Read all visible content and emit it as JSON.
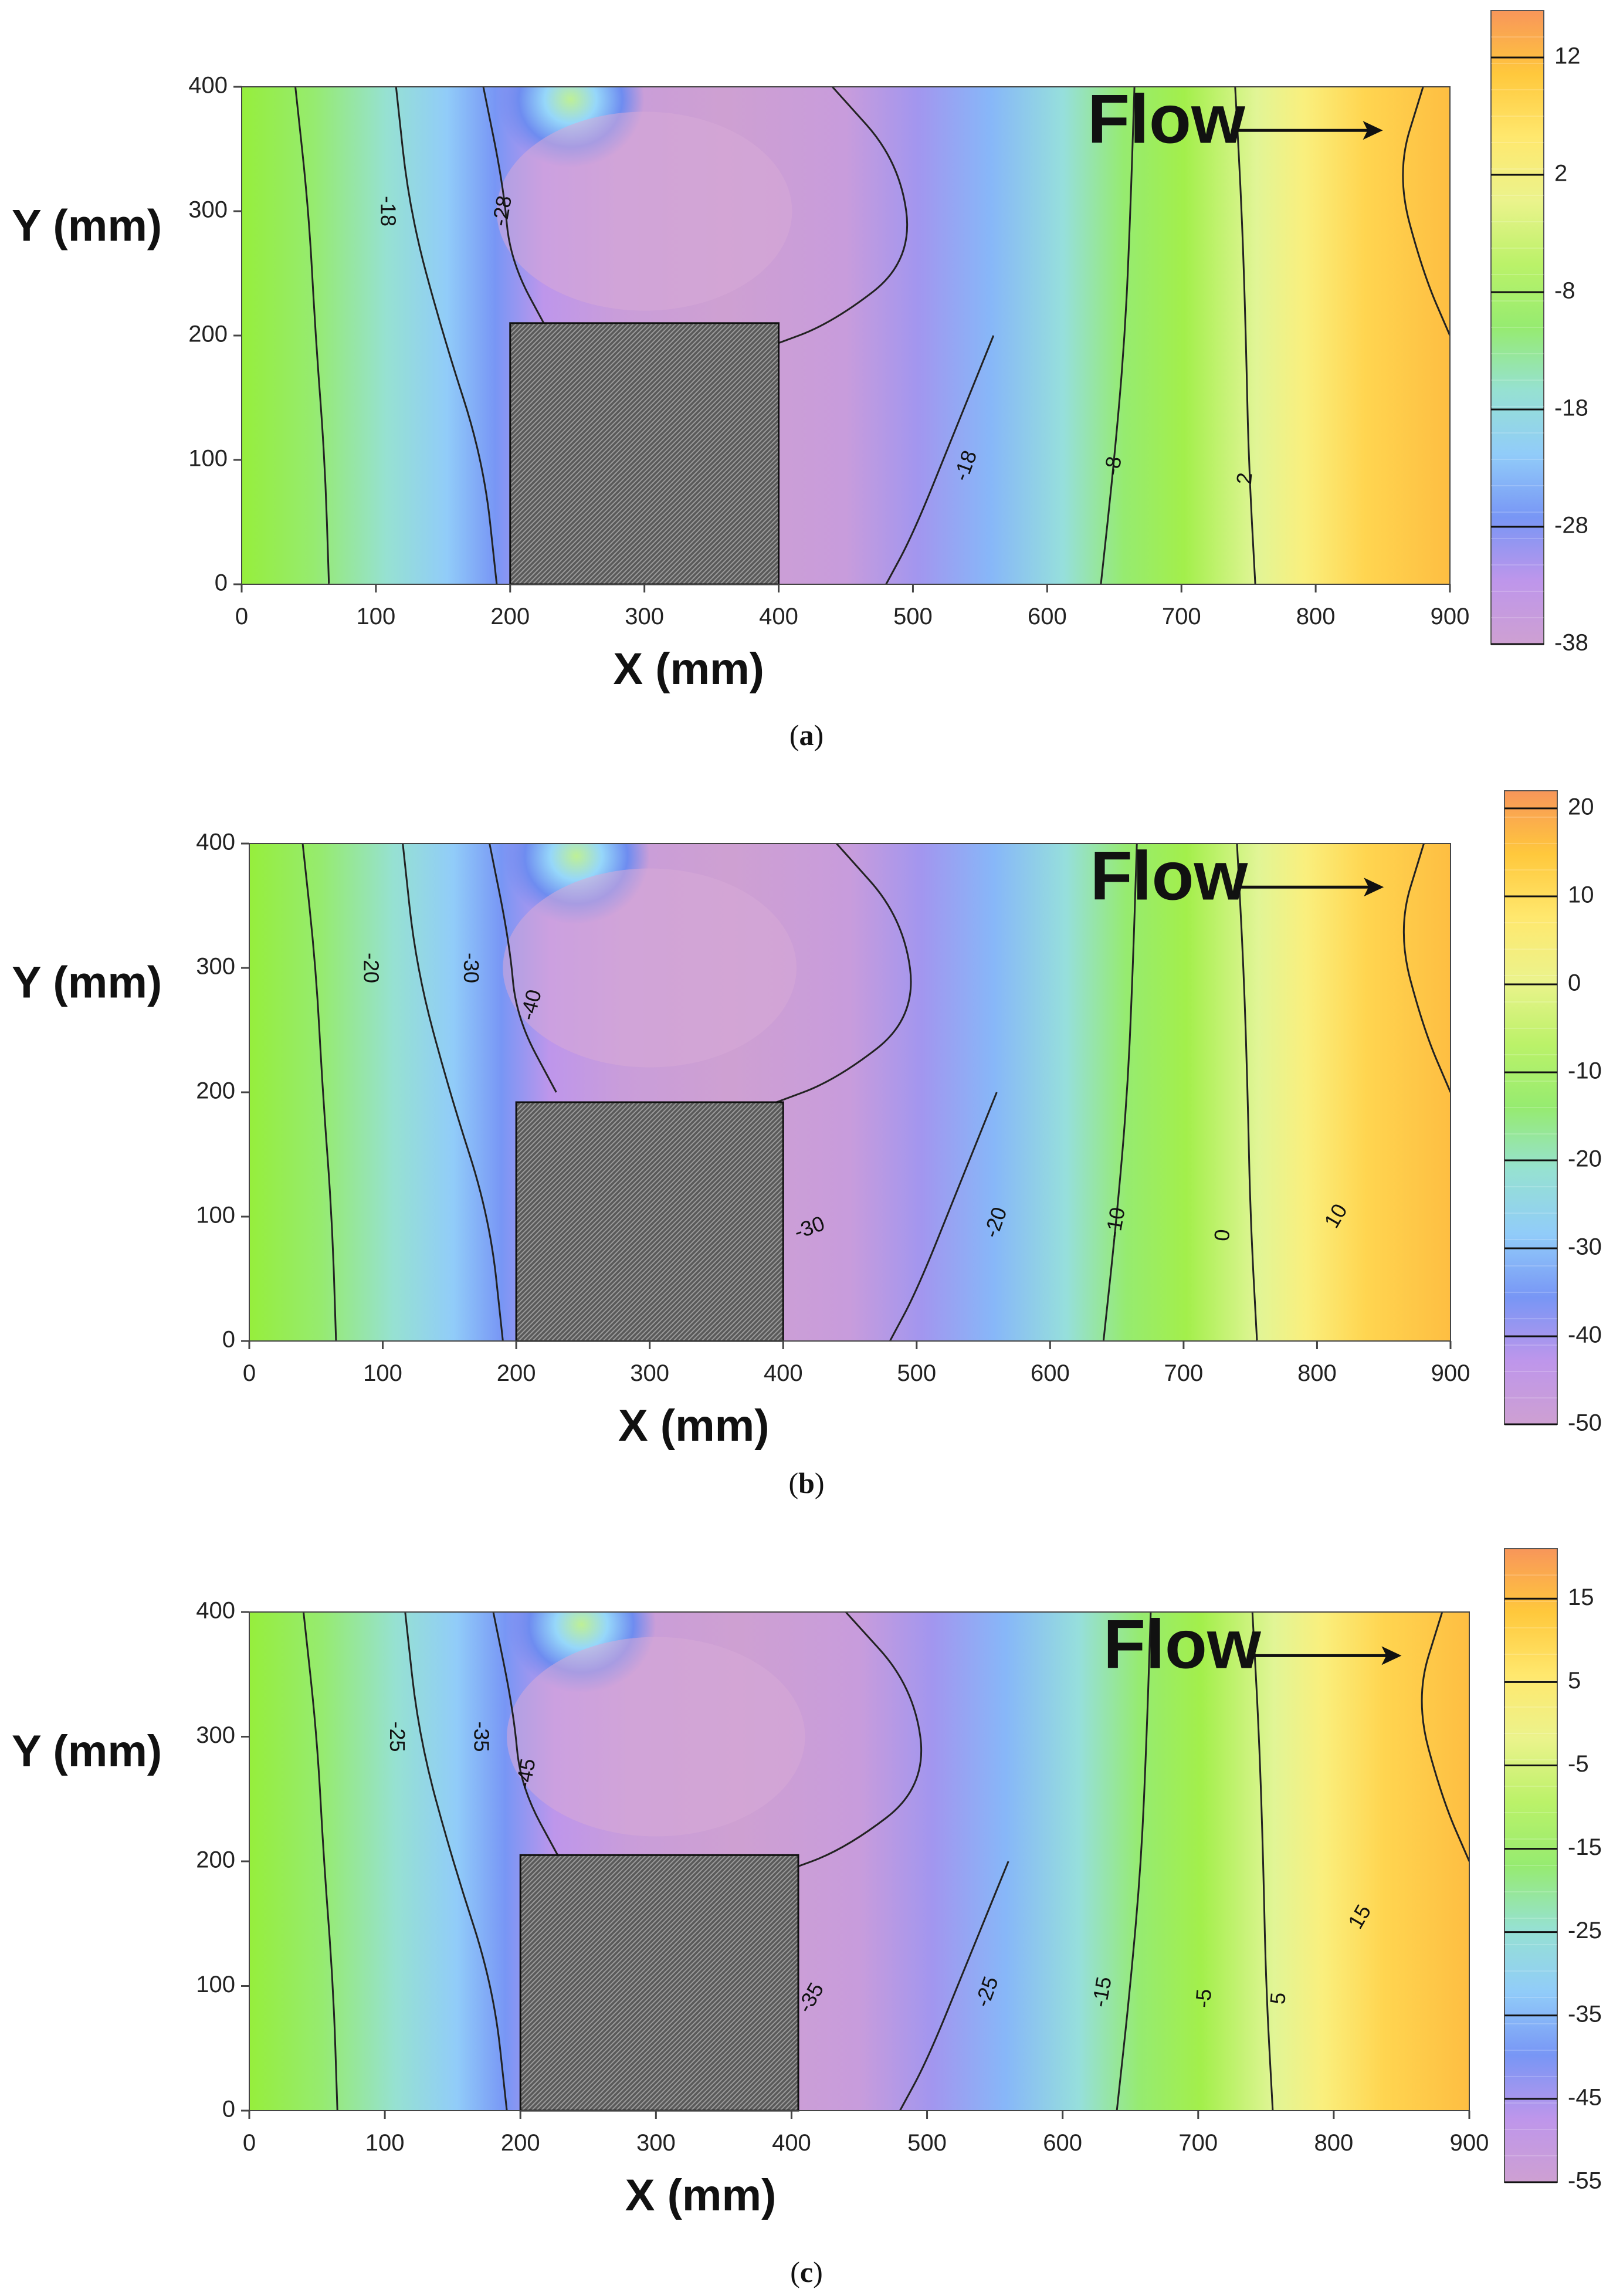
{
  "chart_data": [
    {
      "type": "contour",
      "caption_letter": "a",
      "xlabel": "X (mm)",
      "ylabel": "Y (mm)",
      "xlim": [
        0,
        900
      ],
      "ylim": [
        0,
        400
      ],
      "x_ticks": [
        "0",
        "100",
        "200",
        "300",
        "400",
        "500",
        "600",
        "700",
        "800",
        "900"
      ],
      "y_ticks": [
        "0",
        "100",
        "200",
        "300",
        "400"
      ],
      "annotation": "Flow",
      "obstacle": {
        "x": [
          200,
          400
        ],
        "y": [
          0,
          210
        ]
      },
      "colorbar": {
        "min": -38,
        "max": 16,
        "tick_values": [
          12,
          2,
          -8,
          -18,
          -28,
          -38
        ],
        "tick_labels": [
          "12",
          "2",
          "-8",
          "-18",
          "-28",
          "-38"
        ]
      },
      "contour_labels": [
        {
          "text": "-18",
          "x": 108,
          "y": 300,
          "rot": 90
        },
        {
          "text": "-28",
          "x": 195,
          "y": 300,
          "rot": -80
        },
        {
          "text": "-18",
          "x": 540,
          "y": 95,
          "rot": -70
        },
        {
          "text": "-8",
          "x": 650,
          "y": 95,
          "rot": -80
        },
        {
          "text": "2",
          "x": 748,
          "y": 85,
          "rot": -85
        }
      ]
    },
    {
      "type": "contour",
      "caption_letter": "b",
      "xlabel": "X (mm)",
      "ylabel": "Y (mm)",
      "xlim": [
        0,
        900
      ],
      "ylim": [
        0,
        400
      ],
      "x_ticks": [
        "0",
        "100",
        "200",
        "300",
        "400",
        "500",
        "600",
        "700",
        "800",
        "900"
      ],
      "y_ticks": [
        "0",
        "100",
        "200",
        "300",
        "400"
      ],
      "annotation": "Flow",
      "obstacle": {
        "x": [
          200,
          400
        ],
        "y": [
          0,
          192
        ]
      },
      "colorbar": {
        "min": -50,
        "max": 22,
        "tick_values": [
          20,
          10,
          0,
          -10,
          -20,
          -30,
          -40,
          -50
        ],
        "tick_labels": [
          "20",
          "10",
          "0",
          "-10",
          "-20",
          "-30",
          "-40",
          "-50"
        ]
      },
      "contour_labels": [
        {
          "text": "-20",
          "x": 90,
          "y": 300,
          "rot": 90
        },
        {
          "text": "-30",
          "x": 165,
          "y": 300,
          "rot": 90
        },
        {
          "text": "-40",
          "x": 212,
          "y": 270,
          "rot": -75
        },
        {
          "text": "-30",
          "x": 420,
          "y": 90,
          "rot": -20
        },
        {
          "text": "-20",
          "x": 560,
          "y": 95,
          "rot": -70
        },
        {
          "text": "-10",
          "x": 650,
          "y": 95,
          "rot": -80
        },
        {
          "text": "0",
          "x": 730,
          "y": 85,
          "rot": -85
        },
        {
          "text": "10",
          "x": 815,
          "y": 100,
          "rot": -60
        }
      ]
    },
    {
      "type": "contour",
      "caption_letter": "c",
      "xlabel": "X (mm)",
      "ylabel": "Y (mm)",
      "xlim": [
        0,
        900
      ],
      "ylim": [
        0,
        400
      ],
      "x_ticks": [
        "0",
        "100",
        "200",
        "300",
        "400",
        "500",
        "600",
        "700",
        "800",
        "900"
      ],
      "y_ticks": [
        "0",
        "100",
        "200",
        "300",
        "400"
      ],
      "annotation": "Flow",
      "obstacle": {
        "x": [
          200,
          405
        ],
        "y": [
          0,
          205
        ]
      },
      "colorbar": {
        "min": -55,
        "max": 21,
        "tick_values": [
          15,
          5,
          -5,
          -15,
          -25,
          -35,
          -45,
          -55
        ],
        "tick_labels": [
          "15",
          "5",
          "-5",
          "-15",
          "-25",
          "-35",
          "-45",
          "-55"
        ]
      },
      "contour_labels": [
        {
          "text": "-25",
          "x": 108,
          "y": 300,
          "rot": 90
        },
        {
          "text": "-35",
          "x": 170,
          "y": 300,
          "rot": 90
        },
        {
          "text": "-45",
          "x": 205,
          "y": 270,
          "rot": -80
        },
        {
          "text": "-35",
          "x": 415,
          "y": 90,
          "rot": -60
        },
        {
          "text": "-25",
          "x": 545,
          "y": 95,
          "rot": -70
        },
        {
          "text": "-15",
          "x": 630,
          "y": 95,
          "rot": -80
        },
        {
          "text": "-5",
          "x": 705,
          "y": 90,
          "rot": -85
        },
        {
          "text": "5",
          "x": 760,
          "y": 90,
          "rot": -85
        },
        {
          "text": "15",
          "x": 820,
          "y": 155,
          "rot": -60
        }
      ]
    }
  ]
}
